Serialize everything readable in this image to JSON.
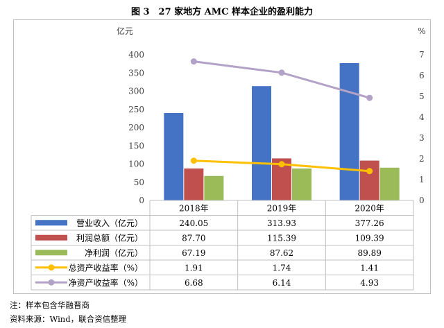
{
  "figure": {
    "title": "图 3　27 家地方 AMC 样本企业的盈利能力",
    "note": "注：样本包含华融晋商",
    "source": "资料来源：Wind，联合资信整理"
  },
  "colors": {
    "revenue": "#4472c4",
    "profit_total": "#c0504d",
    "net_profit": "#9bbb59",
    "roa": "#ffc000",
    "roe": "#b3a2c7"
  },
  "chart_data": {
    "type": "bar",
    "categories": [
      "2018年",
      "2019年",
      "2020年"
    ],
    "ylabel": "亿元",
    "y2label": "%",
    "ylim": [
      0,
      400
    ],
    "y_ticks": [
      0,
      50,
      100,
      150,
      200,
      250,
      300,
      350,
      400
    ],
    "y2lim": [
      0,
      7
    ],
    "y2_ticks": [
      0,
      1,
      2,
      3,
      4,
      5,
      6,
      7
    ],
    "grid": false,
    "legend": "data-table",
    "series": [
      {
        "name": "营业收入（亿元）",
        "kind": "bar",
        "axis": "left",
        "color": "#4472c4",
        "values": [
          240.05,
          313.93,
          377.26
        ],
        "labels": [
          "240.05",
          "313.93",
          "377.26"
        ]
      },
      {
        "name": "利润总额（亿元）",
        "kind": "bar",
        "axis": "left",
        "color": "#c0504d",
        "values": [
          87.7,
          115.39,
          109.39
        ],
        "labels": [
          "87.70",
          "115.39",
          "109.39"
        ]
      },
      {
        "name": "净利润（亿元）",
        "kind": "bar",
        "axis": "left",
        "color": "#9bbb59",
        "values": [
          67.19,
          87.62,
          89.89
        ],
        "labels": [
          "67.19",
          "87.62",
          "89.89"
        ]
      },
      {
        "name": "总资产收益率（%）",
        "kind": "line",
        "axis": "right",
        "color": "#ffc000",
        "values": [
          1.91,
          1.74,
          1.41
        ],
        "labels": [
          "1.91",
          "1.74",
          "1.41"
        ]
      },
      {
        "name": "净资产收益率（%）",
        "kind": "line",
        "axis": "right",
        "color": "#b3a2c7",
        "values": [
          6.68,
          6.14,
          4.93
        ],
        "labels": [
          "6.68",
          "6.14",
          "4.93"
        ]
      }
    ]
  }
}
